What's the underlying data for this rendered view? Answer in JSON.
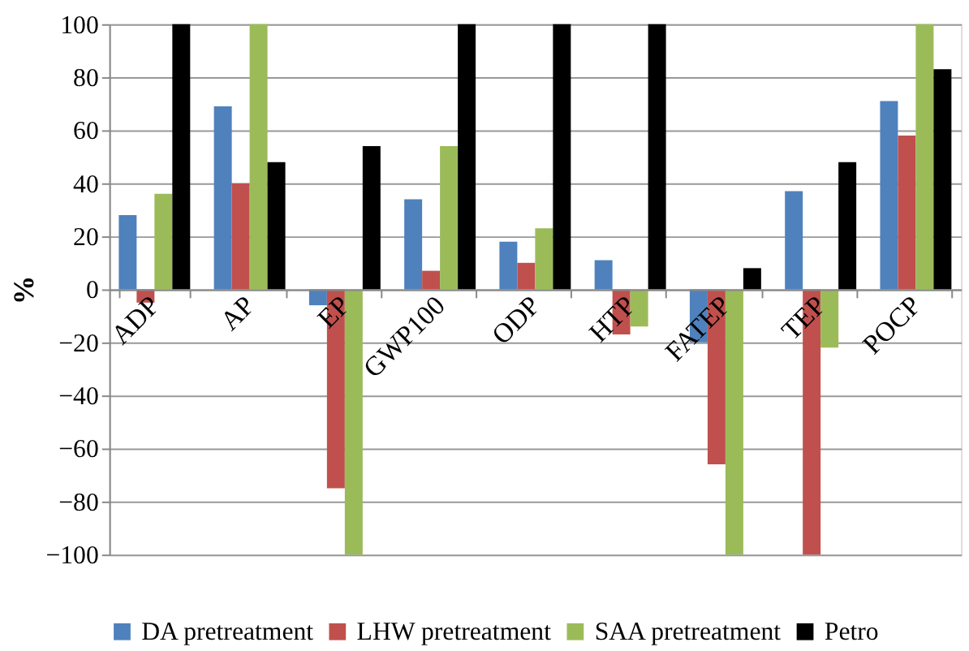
{
  "chart_data": {
    "type": "bar",
    "ylabel": "%",
    "categories": [
      "ADP",
      "AP",
      "EP",
      "GWP100",
      "ODP",
      "HTP",
      "FATEP",
      "TEP",
      "POCP"
    ],
    "series": [
      {
        "name": "DA pretreatment",
        "color": "#4f81bd",
        "values": [
          28,
          69,
          -6,
          34,
          18,
          11,
          -20,
          37,
          71
        ]
      },
      {
        "name": "LHW pretreatment",
        "color": "#c0504d",
        "values": [
          -5,
          40,
          -75,
          7,
          10,
          -17,
          -66,
          -100,
          58
        ]
      },
      {
        "name": "SAA pretreatment",
        "color": "#9bbb59",
        "values": [
          36,
          100,
          -100,
          54,
          23,
          -14,
          -100,
          -22,
          100
        ]
      },
      {
        "name": "Petro",
        "color": "#000000",
        "values": [
          100,
          48,
          54,
          100,
          100,
          100,
          8,
          48,
          83
        ]
      }
    ],
    "ylim": [
      -100,
      100
    ],
    "yticks": [
      -100,
      -80,
      -60,
      -40,
      -20,
      0,
      20,
      40,
      60,
      80,
      100
    ],
    "grid": "y",
    "legend": "bottom"
  }
}
